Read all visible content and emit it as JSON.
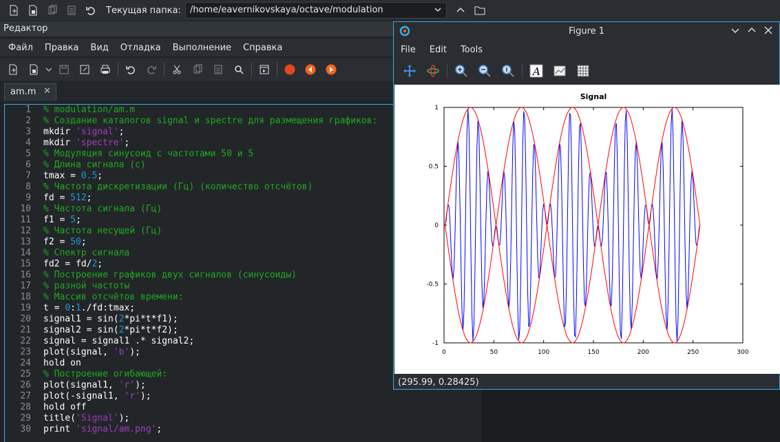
{
  "main_toolbar": {
    "folder_label": "Текущая папка:",
    "folder_path": "/home/eavernikovskaya/octave/modulation"
  },
  "editor": {
    "title": "Редактор",
    "menu": [
      "Файл",
      "Правка",
      "Вид",
      "Отладка",
      "Выполнение",
      "Справка"
    ],
    "tab": "am.m",
    "lines": [
      [
        [
          "cm",
          "% modulation/am.m"
        ]
      ],
      [
        [
          "cm",
          "% Создание каталогов signal и spectre для размещения графиков:"
        ]
      ],
      [
        [
          "id",
          "mkdir "
        ],
        [
          "st",
          "'signal'"
        ],
        [
          "id",
          ";"
        ]
      ],
      [
        [
          "id",
          "mkdir "
        ],
        [
          "st",
          "'spectre'"
        ],
        [
          "id",
          ";"
        ]
      ],
      [
        [
          "cm",
          "% Модуляция синусоид с частотами 50 и 5"
        ]
      ],
      [
        [
          "cm",
          "% Длина сигнала (с)"
        ]
      ],
      [
        [
          "id",
          "tmax = "
        ],
        [
          "nm",
          "0.5"
        ],
        [
          "id",
          ";"
        ]
      ],
      [
        [
          "cm",
          "% Частота дискретизации (Гц) (количество отсчётов)"
        ]
      ],
      [
        [
          "id",
          "fd = "
        ],
        [
          "nm",
          "512"
        ],
        [
          "id",
          ";"
        ]
      ],
      [
        [
          "cm",
          "% Частота сигнала (Гц)"
        ]
      ],
      [
        [
          "id",
          "f1 = "
        ],
        [
          "nm",
          "5"
        ],
        [
          "id",
          ";"
        ]
      ],
      [
        [
          "cm",
          "% Частота несущей (Гц)"
        ]
      ],
      [
        [
          "id",
          "f2 = "
        ],
        [
          "nm",
          "50"
        ],
        [
          "id",
          ";"
        ]
      ],
      [
        [
          "cm",
          "% Спектр сигнала"
        ]
      ],
      [
        [
          "id",
          "fd2 = fd/"
        ],
        [
          "nm",
          "2"
        ],
        [
          "id",
          ";"
        ]
      ],
      [
        [
          "cm",
          "% Построение графиков двух сигналов (синусоиды)"
        ]
      ],
      [
        [
          "cm",
          "% разной частоты"
        ]
      ],
      [
        [
          "cm",
          "% Массив отсчётов времени:"
        ]
      ],
      [
        [
          "id",
          "t = "
        ],
        [
          "nm",
          "0"
        ],
        [
          "id",
          ":"
        ],
        [
          "nm",
          "1"
        ],
        [
          "id",
          "./fd:tmax;"
        ]
      ],
      [
        [
          "id",
          "signal1 = sin("
        ],
        [
          "nm",
          "2"
        ],
        [
          "id",
          "*pi*t*f1);"
        ]
      ],
      [
        [
          "id",
          "signal2 = sin("
        ],
        [
          "nm",
          "2"
        ],
        [
          "id",
          "*pi*t*f2);"
        ]
      ],
      [
        [
          "id",
          "signal = signal1 .* signal2;"
        ]
      ],
      [
        [
          "id",
          "plot(signal, "
        ],
        [
          "st",
          "'b'"
        ],
        [
          "id",
          ");"
        ]
      ],
      [
        [
          "id",
          "hold on"
        ]
      ],
      [
        [
          "cm",
          "% Построение огибающей:"
        ]
      ],
      [
        [
          "id",
          "plot(signal1, "
        ],
        [
          "st",
          "'r'"
        ],
        [
          "id",
          ");"
        ]
      ],
      [
        [
          "id",
          "plot(-signal1, "
        ],
        [
          "st",
          "'r'"
        ],
        [
          "id",
          ");"
        ]
      ],
      [
        [
          "id",
          "hold off"
        ]
      ],
      [
        [
          "id",
          "title("
        ],
        [
          "st",
          "'Signal'"
        ],
        [
          "id",
          ");"
        ]
      ],
      [
        [
          "id",
          "print "
        ],
        [
          "st",
          "'signal/am.png'"
        ],
        [
          "id",
          ";"
        ]
      ]
    ]
  },
  "figure": {
    "title": "Figure 1",
    "menu": [
      "File",
      "Edit",
      "Tools"
    ],
    "status": "(295.99, 0.28425)",
    "colors": {
      "signal": "#0000ff",
      "envelope": "#ff0000"
    },
    "tools": [
      "pan-icon",
      "rotate-icon",
      "zoom-in-icon",
      "zoom-out-icon",
      "reset-zoom-icon",
      "text-icon",
      "axes-icon",
      "grid-icon"
    ]
  },
  "chart_data": {
    "type": "line",
    "title": "Signal",
    "xlim": [
      0,
      300
    ],
    "ylim": [
      -1,
      1
    ],
    "xticks": [
      "0",
      "50",
      "100",
      "150",
      "200",
      "250",
      "300"
    ],
    "yticks": [
      "1",
      "0.5",
      "0",
      "-0.5",
      "-1"
    ],
    "grid": false,
    "series": [
      {
        "color": "#0000ff",
        "formula": "sin(2*pi*t*5)*sin(2*pi*t*50), t=(0:256)/512"
      },
      {
        "color": "#ff0000",
        "formula": "sin(2*pi*t*5)"
      },
      {
        "color": "#ff0000",
        "formula": "-sin(2*pi*t*5)"
      }
    ]
  }
}
